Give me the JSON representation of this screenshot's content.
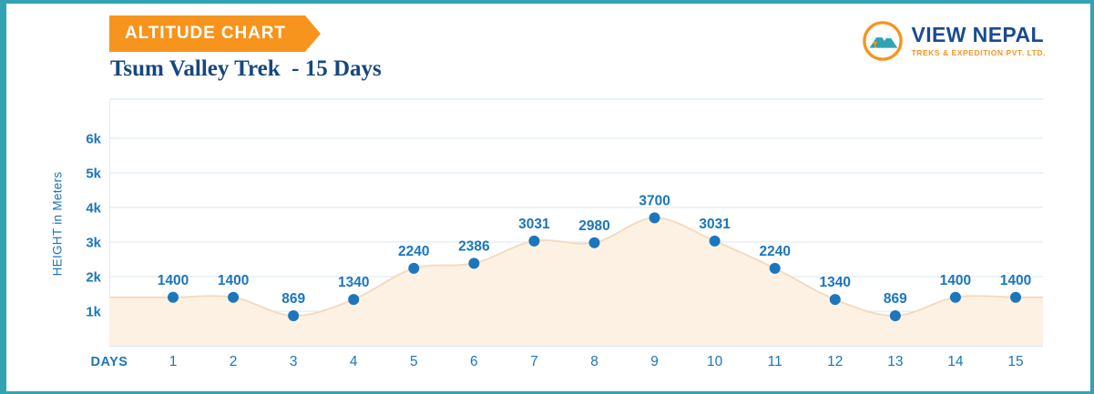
{
  "banner": {
    "label": "ALTITUDE CHART"
  },
  "logo": {
    "name": "VIEW NEPAL",
    "tagline": "TREKS & EXPEDITION PVT. LTD."
  },
  "title": "Tsum Valley Trek  - 15 Days",
  "chart_data": {
    "type": "area",
    "title": "Tsum Valley Trek - 15 Days",
    "xlabel": "DAYS",
    "ylabel": "HEIGHT in Meters",
    "x": [
      1,
      2,
      3,
      4,
      5,
      6,
      7,
      8,
      9,
      10,
      11,
      12,
      13,
      14,
      15
    ],
    "values": [
      1400,
      1400,
      869,
      1340,
      2240,
      2386,
      3031,
      2980,
      3700,
      3031,
      2240,
      1340,
      869,
      1400,
      1400
    ],
    "ytick_labels": [
      "1k",
      "2k",
      "3k",
      "4k",
      "5k",
      "6k"
    ],
    "ytick_values": [
      1000,
      2000,
      3000,
      4000,
      5000,
      6000
    ],
    "ylim": [
      0,
      6800
    ],
    "grid": true,
    "legend": "none",
    "colors": {
      "accent_orange": "#F7941D",
      "navy": "#17477E",
      "blue": "#1B76BC",
      "teal": "#31A3B2",
      "area_fill": "#FDF1E3",
      "area_stroke": "#F3DCC0",
      "grid": "#D9E7F2",
      "axis": "#C9DCEA",
      "frame": "#E4EEF6"
    }
  }
}
